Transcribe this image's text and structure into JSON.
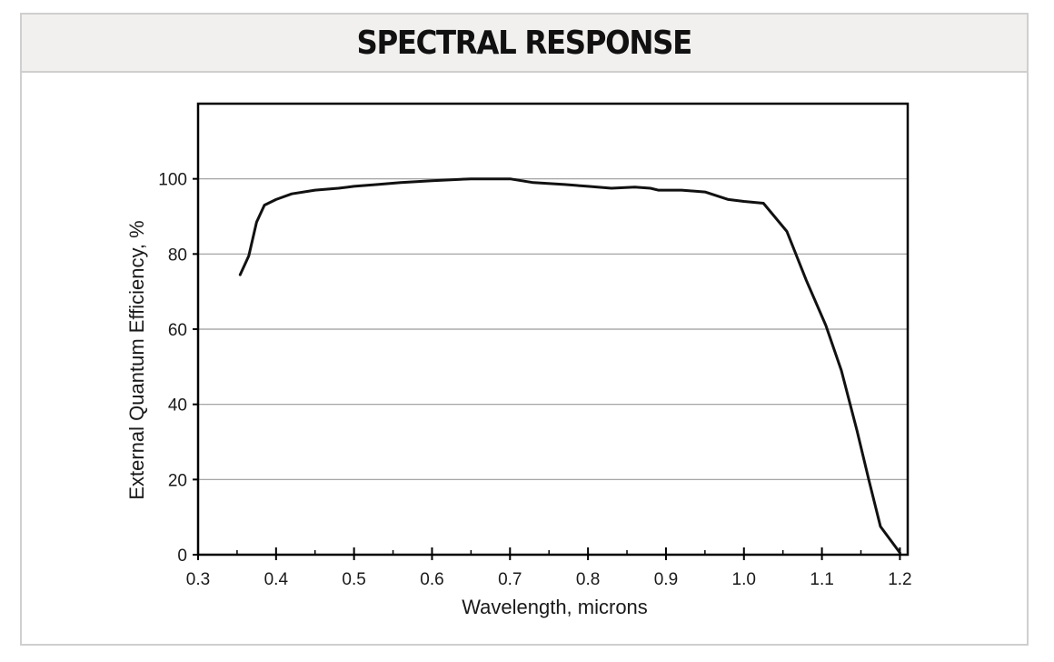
{
  "panel": {
    "title": "SPECTRAL RESPONSE"
  },
  "colors": {
    "curve": "#111111",
    "grid": "#9a9a9a",
    "frame": "#000000",
    "header_bg": "#f1f0ee",
    "panel_border": "#cfcfcf"
  },
  "chart_data": {
    "type": "line",
    "title": "SPECTRAL RESPONSE",
    "xlabel": "Wavelength, microns",
    "ylabel": "External Quantum Efficiency, %",
    "xlim": [
      0.3,
      1.21
    ],
    "ylim": [
      0,
      120
    ],
    "xticks": [
      0.3,
      0.4,
      0.5,
      0.6,
      0.7,
      0.8,
      0.9,
      1.0,
      1.1,
      1.2
    ],
    "xtick_labels": [
      "0.3",
      "0.4",
      "0.5",
      "0.6",
      "0.7",
      "0.8",
      "0.9",
      "1.0",
      "1.1",
      "1.2"
    ],
    "yticks": [
      0,
      20,
      40,
      60,
      80,
      100
    ],
    "ytick_labels": [
      "0",
      "20",
      "40",
      "60",
      "80",
      "100"
    ],
    "grid": "horizontal",
    "legend": "none",
    "series": [
      {
        "x": [
          0.354,
          0.365,
          0.375,
          0.385,
          0.4,
          0.42,
          0.45,
          0.48,
          0.5,
          0.53,
          0.56,
          0.6,
          0.65,
          0.7,
          0.73,
          0.77,
          0.8,
          0.83,
          0.86,
          0.88,
          0.89,
          0.92,
          0.95,
          0.98,
          1.0,
          1.025,
          1.055,
          1.08,
          1.105,
          1.125,
          1.145,
          1.16,
          1.175,
          1.2
        ],
        "y": [
          74.5,
          79.5,
          88.5,
          93,
          94.5,
          96,
          97,
          97.5,
          98,
          98.5,
          99,
          99.5,
          100,
          100,
          99,
          98.5,
          98,
          97.5,
          97.8,
          97.5,
          97,
          97,
          96.5,
          94.5,
          94,
          93.5,
          86,
          73,
          61,
          49,
          33,
          20,
          7.5,
          0.5
        ]
      }
    ]
  }
}
